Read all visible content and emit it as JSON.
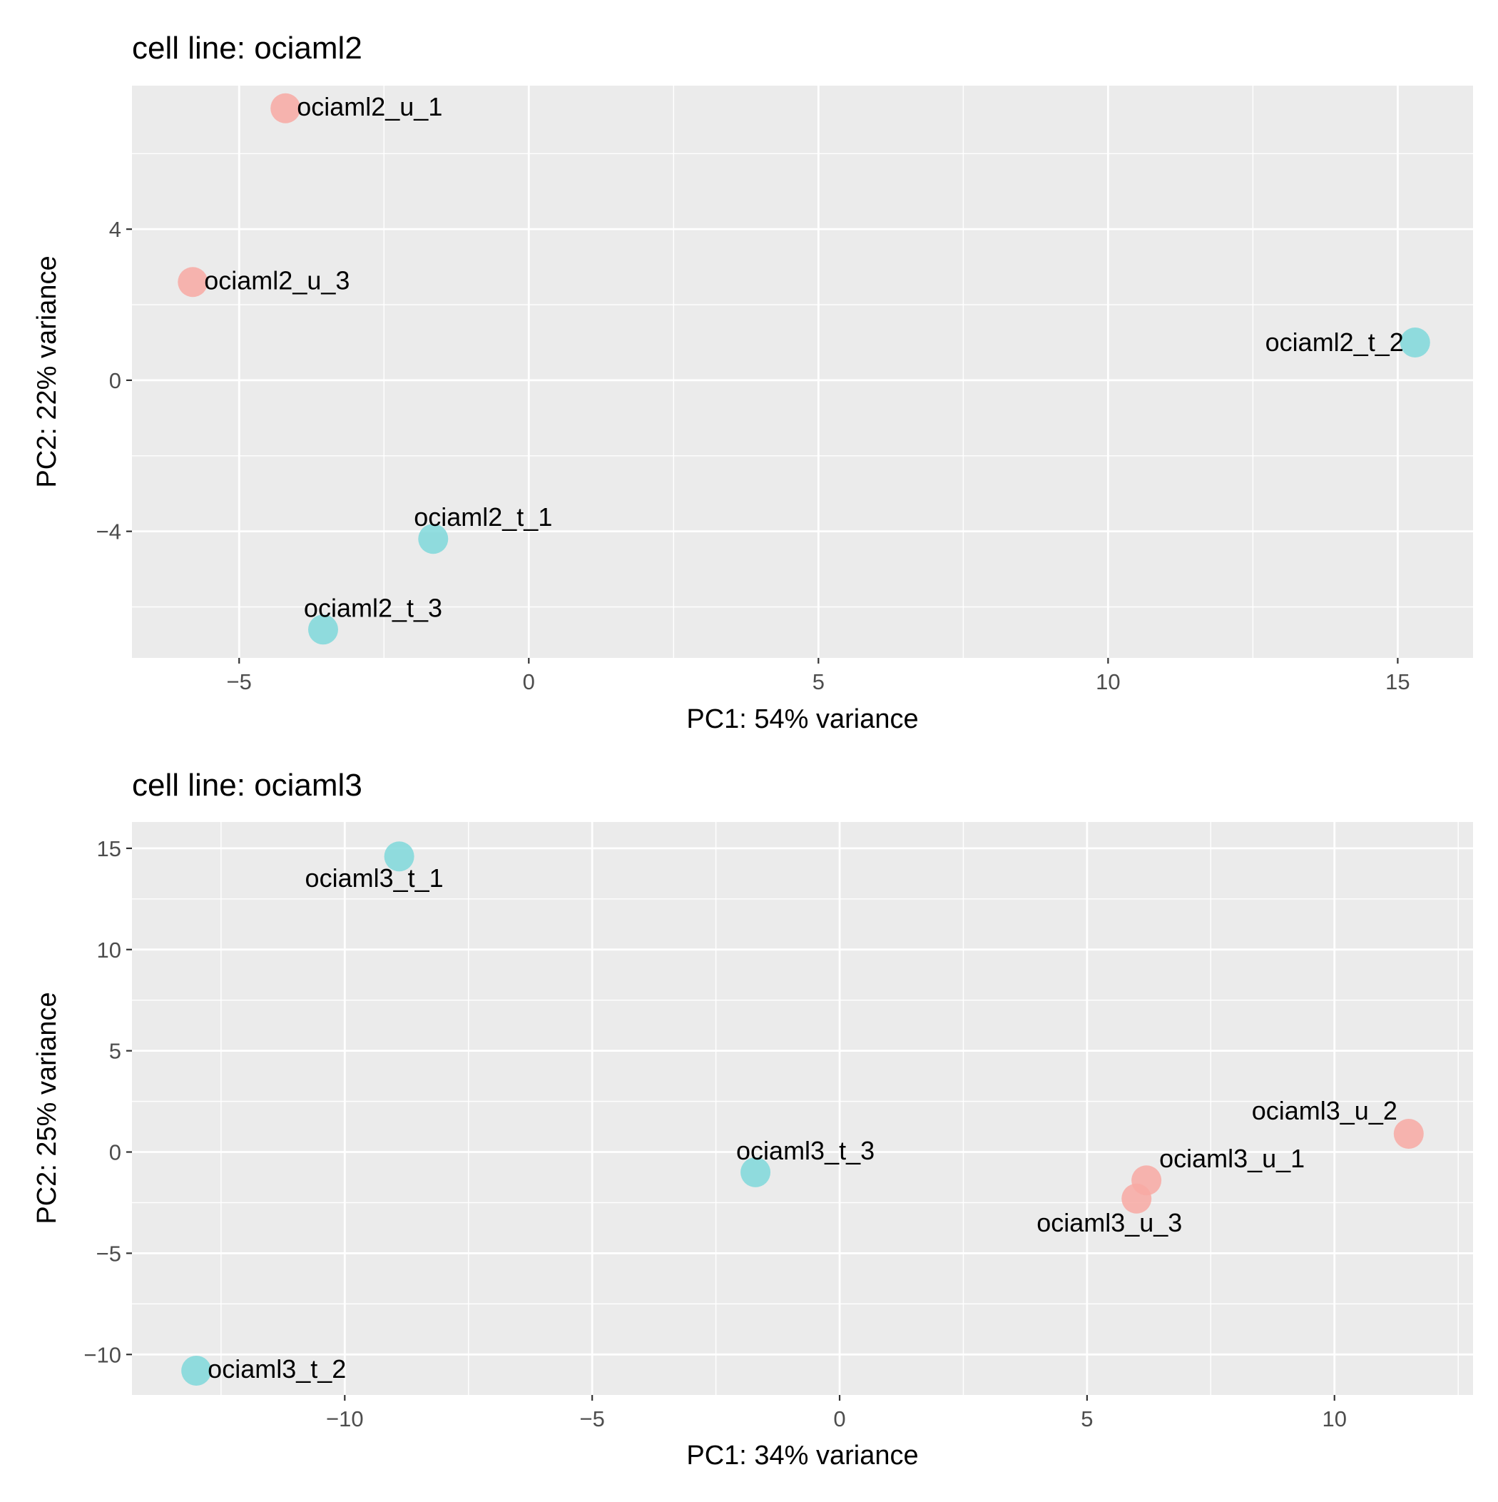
{
  "chart_data": [
    {
      "type": "scatter",
      "title": "cell line: ociaml2",
      "xlabel": "PC1: 54% variance",
      "ylabel": "PC2: 22% variance",
      "xlim": [
        -6.85,
        16.3
      ],
      "ylim": [
        -7.35,
        7.8
      ],
      "xticks": [
        -5,
        0,
        5,
        10,
        15
      ],
      "xtick_labels": [
        "−5",
        "0",
        "5",
        "10",
        "15"
      ],
      "yticks": [
        -4,
        0,
        4
      ],
      "ytick_labels": [
        "−4",
        "0",
        "4"
      ],
      "grid": true,
      "legend": "none",
      "colors": {
        "u": "#F8A9A3",
        "t": "#7FD8DA",
        "panel": "#EBEBEB",
        "grid": "#FFFFFF"
      },
      "points": [
        {
          "label": "ociaml2_u_1",
          "group": "u",
          "x": -4.2,
          "y": 7.2,
          "label_pos": "right"
        },
        {
          "label": "ociaml2_u_3",
          "group": "u",
          "x": -5.8,
          "y": 2.6,
          "label_pos": "right"
        },
        {
          "label": "ociaml2_t_2",
          "group": "t",
          "x": 15.3,
          "y": 1.0,
          "label_pos": "left"
        },
        {
          "label": "ociaml2_t_1",
          "group": "t",
          "x": -1.65,
          "y": -4.2,
          "label_pos": "above"
        },
        {
          "label": "ociaml2_t_3",
          "group": "t",
          "x": -3.55,
          "y": -6.6,
          "label_pos": "above"
        }
      ]
    },
    {
      "type": "scatter",
      "title": "cell line: ociaml3",
      "xlabel": "PC1: 34% variance",
      "ylabel": "PC2: 25% variance",
      "xlim": [
        -14.3,
        12.8
      ],
      "ylim": [
        -12.0,
        16.3
      ],
      "xticks": [
        -10,
        -5,
        0,
        5,
        10
      ],
      "xtick_labels": [
        "−10",
        "−5",
        "0",
        "5",
        "10"
      ],
      "yticks": [
        -10,
        -5,
        0,
        5,
        10,
        15
      ],
      "ytick_labels": [
        "−10",
        "−5",
        "0",
        "5",
        "10",
        "15"
      ],
      "grid": true,
      "legend": "none",
      "colors": {
        "u": "#F8A9A3",
        "t": "#7FD8DA",
        "panel": "#EBEBEB",
        "grid": "#FFFFFF"
      },
      "points": [
        {
          "label": "ociaml3_t_1",
          "group": "t",
          "x": -8.9,
          "y": 14.6,
          "label_pos": "below"
        },
        {
          "label": "ociaml3_t_2",
          "group": "t",
          "x": -13.0,
          "y": -10.8,
          "label_pos": "right"
        },
        {
          "label": "ociaml3_t_3",
          "group": "t",
          "x": -1.7,
          "y": -1.0,
          "label_pos": "above"
        },
        {
          "label": "ociaml3_u_2",
          "group": "u",
          "x": 11.5,
          "y": 0.9,
          "label_pos": "above-left"
        },
        {
          "label": "ociaml3_u_1",
          "group": "u",
          "x": 6.2,
          "y": -1.4,
          "label_pos": "above-right"
        },
        {
          "label": "ociaml3_u_3",
          "group": "u",
          "x": 6.0,
          "y": -2.3,
          "label_pos": "below-left"
        }
      ]
    }
  ]
}
